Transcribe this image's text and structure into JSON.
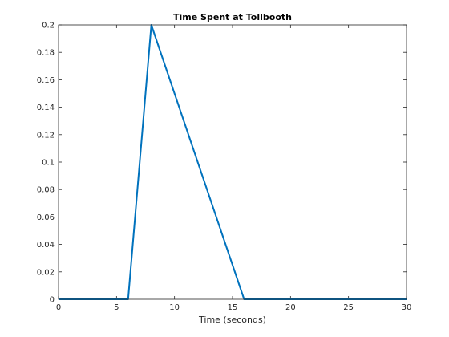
{
  "chart_data": {
    "type": "line",
    "title": "Time Spent at Tollbooth",
    "xlabel": "Time (seconds)",
    "ylabel": "",
    "xlim": [
      0,
      30
    ],
    "ylim": [
      0,
      0.2
    ],
    "grid": false,
    "x_ticks": [
      0,
      5,
      10,
      15,
      20,
      25,
      30
    ],
    "x_tick_labels": [
      "0",
      "5",
      "10",
      "15",
      "20",
      "25",
      "30"
    ],
    "y_ticks": [
      0,
      0.02,
      0.04,
      0.06,
      0.08,
      0.1,
      0.12,
      0.14,
      0.16,
      0.18,
      0.2
    ],
    "y_tick_labels": [
      "0",
      "0.02",
      "0.04",
      "0.06",
      "0.08",
      "0.1",
      "0.12",
      "0.14",
      "0.16",
      "0.18",
      "0.2"
    ],
    "series": [
      {
        "color": "#0072bd",
        "x": [
          0,
          6,
          8,
          16,
          30
        ],
        "y": [
          0,
          0,
          0.2,
          0,
          0
        ]
      }
    ]
  }
}
